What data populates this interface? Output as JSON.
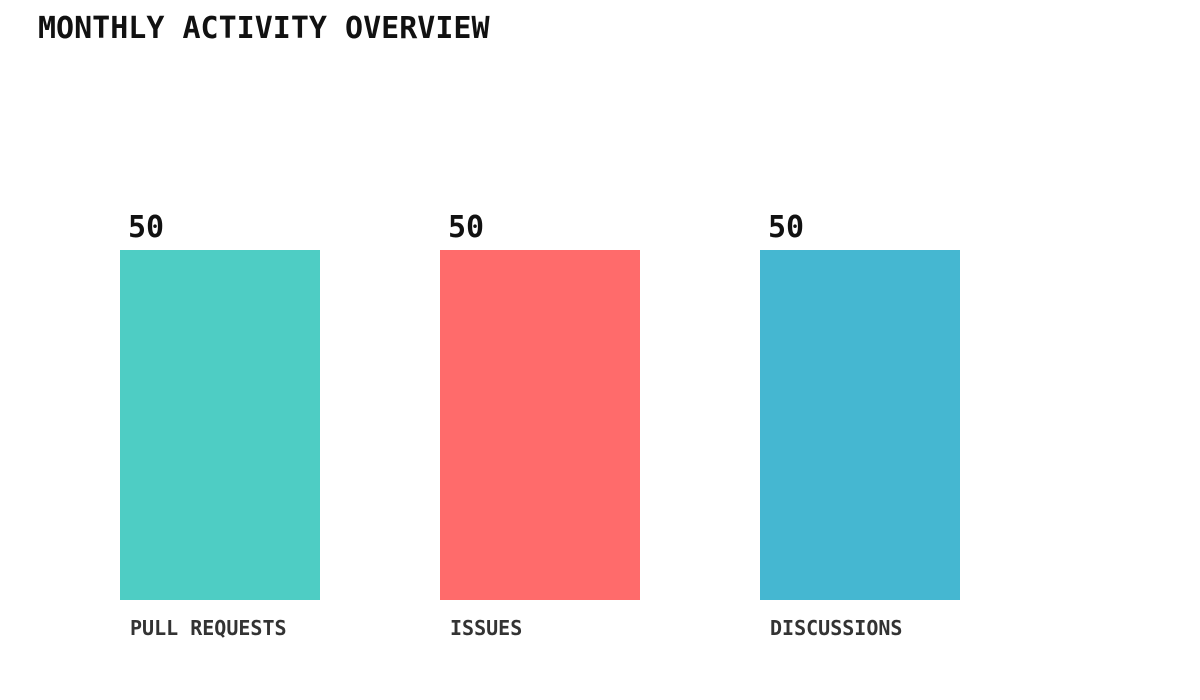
{
  "page": {
    "background": "#ffffff"
  },
  "chart_data": {
    "type": "bar",
    "title": "MONTHLY ACTIVITY OVERVIEW",
    "categories": [
      "PULL REQUESTS",
      "ISSUES",
      "DISCUSSIONS"
    ],
    "values": [
      50,
      50,
      50
    ],
    "value_labels": [
      "50",
      "50",
      "50"
    ],
    "colors": [
      "#4ECDC4",
      "#FF6B6B",
      "#45B7D1"
    ],
    "xlabel": "",
    "ylabel": "",
    "ylim": [
      0,
      50
    ],
    "grid": false,
    "legend": false,
    "title_color": "#111111",
    "value_label_color": "#111111",
    "category_label_color": "#333333"
  }
}
